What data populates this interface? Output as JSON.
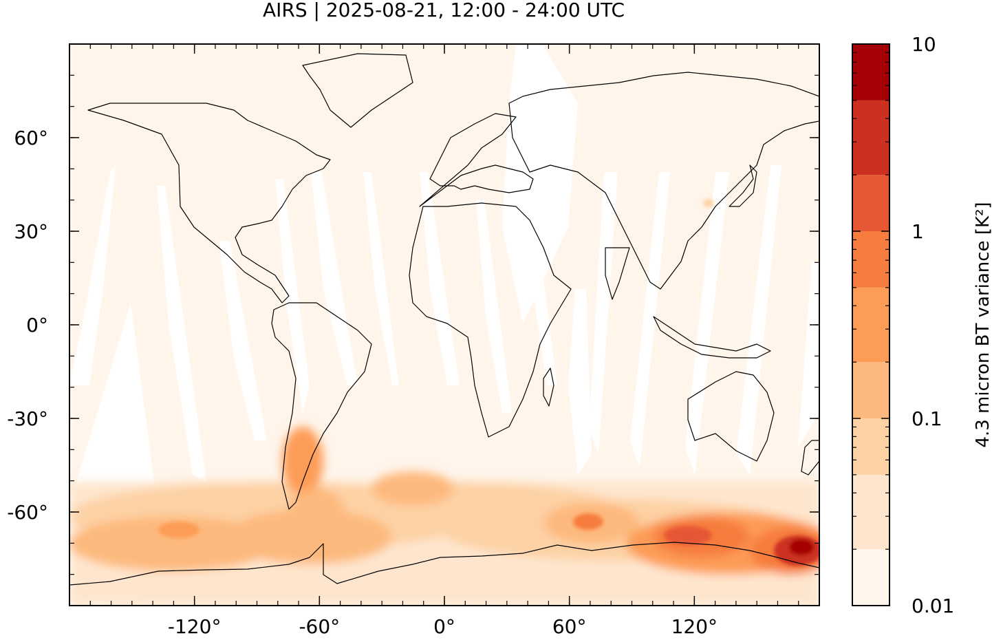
{
  "title": "AIRS | 2025-08-21, 12:00 - 24:00 UTC",
  "map": {
    "projection": "equirectangular",
    "lon_range": [
      -180,
      180
    ],
    "lat_range": [
      -90,
      90
    ],
    "x_ticks": [
      {
        "value": -120,
        "label": "-120°"
      },
      {
        "value": -60,
        "label": "-60°"
      },
      {
        "value": 0,
        "label": "0°"
      },
      {
        "value": 60,
        "label": "60°"
      },
      {
        "value": 120,
        "label": "120°"
      }
    ],
    "y_ticks": [
      {
        "value": 60,
        "label": "60°"
      },
      {
        "value": 30,
        "label": "30°"
      },
      {
        "value": 0,
        "label": "0°"
      },
      {
        "value": -30,
        "label": "-30°"
      },
      {
        "value": -60,
        "label": "-60°"
      }
    ],
    "background_color": "#fff5eb",
    "coastline_color": "#000000",
    "hotspots": [
      {
        "region": "Southern Ocean south of Australia",
        "lon": 165,
        "lat": -68,
        "level": 8
      },
      {
        "region": "South of Indian Ocean",
        "lon": 120,
        "lat": -65,
        "level": 4
      },
      {
        "region": "Patagonia / Andes",
        "lon": -70,
        "lat": -40,
        "level": 1
      },
      {
        "region": "Drake Passage",
        "lon": -60,
        "lat": -58,
        "level": 1
      },
      {
        "region": "Southern Ocean south of Pacific",
        "lon": -120,
        "lat": -65,
        "level": 0.6
      },
      {
        "region": "Southern Ocean south of Atlantic",
        "lon": -10,
        "lat": -55,
        "level": 0.4
      },
      {
        "region": "South of Africa",
        "lon": 60,
        "lat": -62,
        "level": 0.5
      },
      {
        "region": "Korea",
        "lon": 127,
        "lat": 36,
        "level": 0.15
      }
    ]
  },
  "colorbar": {
    "label": "4.3 micron BT variance [K²]",
    "scale": "log",
    "range": [
      0.01,
      10
    ],
    "tick_labels": [
      {
        "value": 10,
        "label": "10"
      },
      {
        "value": 1,
        "label": "1"
      },
      {
        "value": 0.1,
        "label": "0.1"
      },
      {
        "value": 0.01,
        "label": "0.01"
      }
    ],
    "bins": [
      0.01,
      0.02,
      0.05,
      0.1,
      0.2,
      0.5,
      1,
      2,
      5,
      10
    ],
    "colors": [
      "#fff5eb",
      "#fee6ce",
      "#fdd2a5",
      "#fdb97d",
      "#fd9c57",
      "#f67d3e",
      "#e65734",
      "#cc3020",
      "#a50005"
    ]
  }
}
